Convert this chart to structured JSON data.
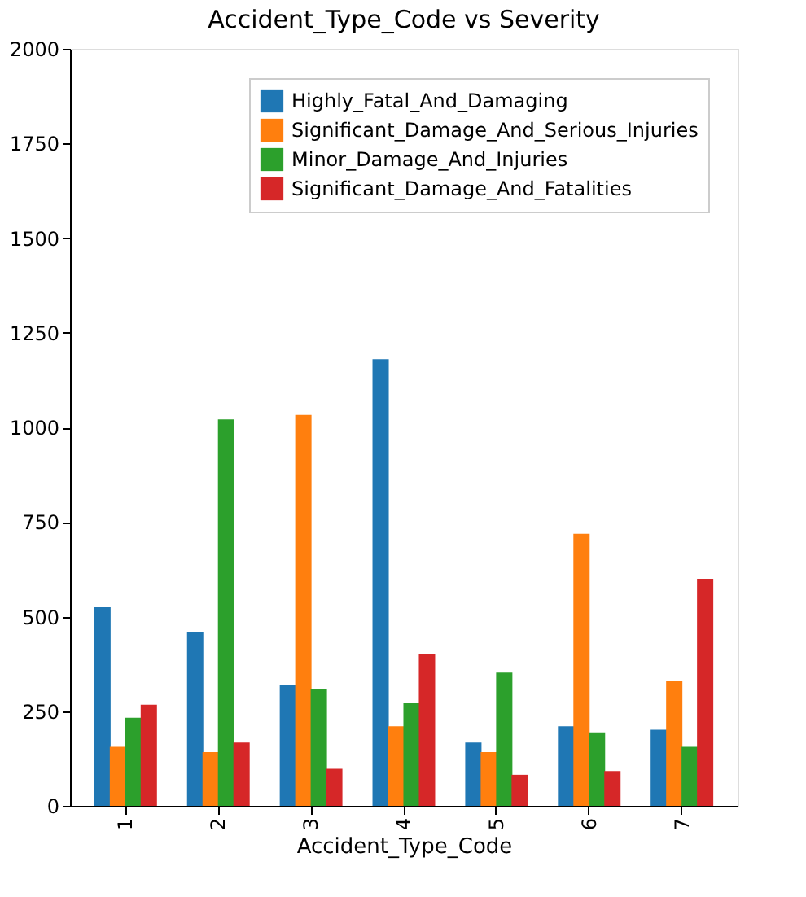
{
  "chart_data": {
    "type": "bar",
    "title": "Accident_Type_Code vs Severity",
    "xlabel": "Accident_Type_Code",
    "categories": [
      "1",
      "2",
      "3",
      "4",
      "5",
      "6",
      "7"
    ],
    "series": [
      {
        "name": "Highly_Fatal_And_Damaging",
        "color": "#1f77b4",
        "values": [
          525,
          460,
          319,
          1180,
          167,
          210,
          201
        ]
      },
      {
        "name": "Significant_Damage_And_Serious_Injuries",
        "color": "#ff7f0e",
        "values": [
          156,
          142,
          1033,
          210,
          142,
          719,
          329
        ]
      },
      {
        "name": "Minor_Damage_And_Injuries",
        "color": "#2ca02c",
        "values": [
          233,
          1021,
          308,
          271,
          352,
          194,
          156
        ]
      },
      {
        "name": "Significant_Damage_And_Fatalities",
        "color": "#d62728",
        "values": [
          267,
          167,
          98,
          400,
          82,
          92,
          600
        ]
      }
    ],
    "ylim": [
      0,
      2000
    ],
    "yticks": [
      0,
      250,
      500,
      750,
      1000,
      1250,
      1500,
      1750,
      2000
    ],
    "grid": false,
    "legend": "top right"
  }
}
